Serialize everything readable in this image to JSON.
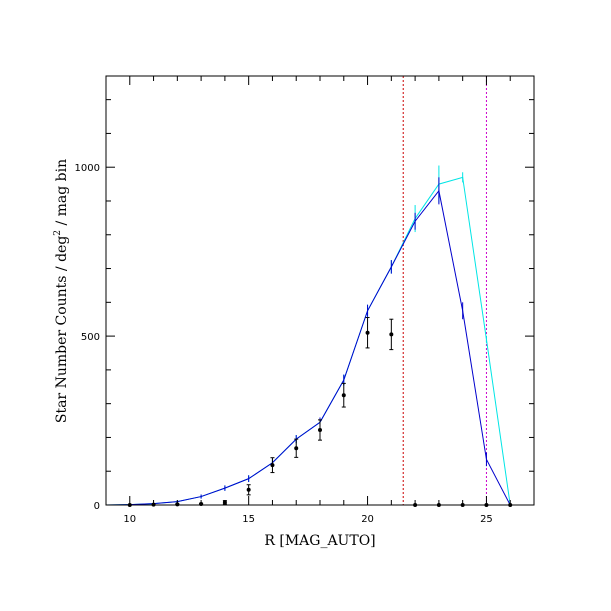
{
  "chart_data": {
    "type": "line",
    "title": "",
    "xlabel": "R [MAG_AUTO]",
    "ylabel": "Star Number Counts / deg² / mag bin",
    "ylabel_parts": {
      "pre": "Star Number Counts / deg",
      "sup": "2",
      "post": " / mag bin"
    },
    "xlim": [
      9,
      27
    ],
    "ylim": [
      0,
      1270
    ],
    "x_ticks": [
      10,
      15,
      20,
      25
    ],
    "y_ticks": [
      0,
      500,
      1000
    ],
    "grid": false,
    "series": [
      {
        "color": "#00e5e5",
        "x": [
          9,
          10,
          11,
          12,
          13,
          14,
          15,
          16,
          17,
          18,
          19,
          20,
          21,
          22,
          23,
          24,
          25,
          26
        ],
        "y": [
          0,
          1,
          4,
          10,
          25,
          50,
          78,
          125,
          195,
          245,
          370,
          575,
          705,
          848,
          950,
          970,
          490,
          0
        ],
        "err": [
          0,
          1,
          2,
          4,
          6,
          8,
          10,
          12,
          12,
          14,
          16,
          18,
          20,
          40,
          55,
          15,
          10,
          0
        ]
      },
      {
        "color": "#0000cc",
        "x": [
          9,
          10,
          11,
          12,
          13,
          14,
          15,
          16,
          17,
          18,
          19,
          20,
          21,
          22,
          23,
          24,
          25,
          26
        ],
        "y": [
          0,
          1,
          4,
          10,
          25,
          50,
          78,
          125,
          195,
          245,
          370,
          575,
          705,
          840,
          930,
          575,
          135,
          0
        ],
        "err": [
          0,
          1,
          2,
          4,
          6,
          8,
          10,
          12,
          12,
          14,
          16,
          18,
          20,
          25,
          40,
          25,
          20,
          0
        ]
      },
      {
        "color": "#000000",
        "style": "points",
        "x": [
          10,
          11,
          12,
          13,
          14,
          15,
          16,
          17,
          18,
          19,
          20,
          21,
          22,
          23,
          24,
          25,
          26
        ],
        "y": [
          0,
          1,
          2,
          3,
          8,
          45,
          118,
          168,
          222,
          325,
          510,
          505,
          0,
          0,
          0,
          0,
          0
        ],
        "err": [
          0,
          1,
          1,
          2,
          5,
          15,
          22,
          27,
          30,
          35,
          45,
          45,
          0,
          0,
          0,
          0,
          0
        ]
      }
    ],
    "vlines": [
      {
        "x": 21.5,
        "color": "#cc0000",
        "style": "dashed"
      },
      {
        "x": 25.0,
        "color": "#cc00cc",
        "style": "dashed"
      }
    ]
  }
}
